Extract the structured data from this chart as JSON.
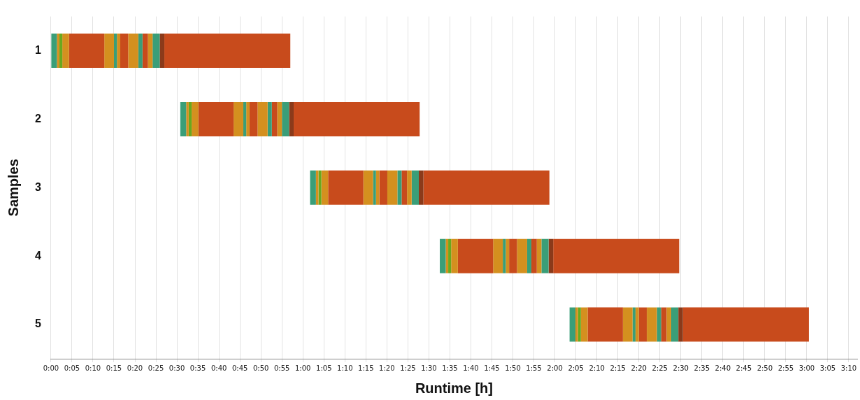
{
  "chart_data": {
    "type": "bar",
    "orientation": "horizontal",
    "xlabel": "Runtime [h]",
    "ylabel": "Samples",
    "categories": [
      "1",
      "2",
      "3",
      "4",
      "5"
    ],
    "grid": "x",
    "legend": false,
    "xlim": [
      0,
      192
    ],
    "xticks": [
      {
        "value": 0,
        "label": "0:00"
      },
      {
        "value": 5,
        "label": "0:05"
      },
      {
        "value": 10,
        "label": "0:10"
      },
      {
        "value": 15,
        "label": "0:15"
      },
      {
        "value": 20,
        "label": "0:20"
      },
      {
        "value": 25,
        "label": "0:25"
      },
      {
        "value": 30,
        "label": "0:30"
      },
      {
        "value": 35,
        "label": "0:35"
      },
      {
        "value": 40,
        "label": "0:40"
      },
      {
        "value": 45,
        "label": "0:45"
      },
      {
        "value": 50,
        "label": "0:50"
      },
      {
        "value": 55,
        "label": "0:55"
      },
      {
        "value": 60,
        "label": "1:00"
      },
      {
        "value": 65,
        "label": "1:05"
      },
      {
        "value": 70,
        "label": "1:10"
      },
      {
        "value": 75,
        "label": "1:15"
      },
      {
        "value": 80,
        "label": "1:20"
      },
      {
        "value": 85,
        "label": "1:25"
      },
      {
        "value": 90,
        "label": "1:30"
      },
      {
        "value": 95,
        "label": "1:35"
      },
      {
        "value": 100,
        "label": "1:40"
      },
      {
        "value": 105,
        "label": "1:45"
      },
      {
        "value": 110,
        "label": "1:50"
      },
      {
        "value": 115,
        "label": "1:55"
      },
      {
        "value": 120,
        "label": "2:00"
      },
      {
        "value": 125,
        "label": "2:05"
      },
      {
        "value": 130,
        "label": "2:10"
      },
      {
        "value": 135,
        "label": "2:15"
      },
      {
        "value": 140,
        "label": "2:20"
      },
      {
        "value": 145,
        "label": "2:25"
      },
      {
        "value": 150,
        "label": "2:30"
      },
      {
        "value": 155,
        "label": "2:35"
      },
      {
        "value": 160,
        "label": "2:40"
      },
      {
        "value": 165,
        "label": "2:45"
      },
      {
        "value": 170,
        "label": "2:50"
      },
      {
        "value": 175,
        "label": "2:55"
      },
      {
        "value": 180,
        "label": "3:00"
      },
      {
        "value": 185,
        "label": "3:05"
      },
      {
        "value": 190,
        "label": "3:10"
      }
    ],
    "series": [
      {
        "color": "#3a9e78",
        "base": [
          0,
          30.8,
          61.7,
          92.6,
          123.5
        ],
        "values": [
          1.4,
          1.4,
          1.4,
          1.4,
          1.4
        ]
      },
      {
        "color": "#d4901f",
        "base": [
          1.4,
          32.2,
          63.1,
          94,
          124.9
        ],
        "values": [
          0.6,
          0.6,
          0.6,
          0.6,
          0.6
        ]
      },
      {
        "color": "#6aa81e",
        "base": [
          2,
          32.8,
          63.7,
          94.6,
          125.5
        ],
        "values": [
          0.7,
          0.7,
          0.7,
          0.7,
          0.7
        ]
      },
      {
        "color": "#d4901f",
        "base": [
          2.7,
          33.5,
          64.4,
          95.3,
          126.2
        ],
        "values": [
          1.6,
          1.6,
          1.6,
          1.6,
          1.6
        ]
      },
      {
        "color": "#c84b1c",
        "base": [
          4.3,
          35.1,
          66,
          96.9,
          127.8
        ],
        "values": [
          8.4,
          8.4,
          8.4,
          8.4,
          8.4
        ]
      },
      {
        "color": "#d4901f",
        "base": [
          12.7,
          43.5,
          74.4,
          105.3,
          136.2
        ],
        "values": [
          2.3,
          2.3,
          2.3,
          2.3,
          2.3
        ]
      },
      {
        "color": "#3a9e78",
        "base": [
          15,
          45.8,
          76.7,
          107.6,
          138.5
        ],
        "values": [
          0.7,
          0.7,
          0.7,
          0.7,
          0.7
        ]
      },
      {
        "color": "#d4901f",
        "base": [
          15.7,
          46.5,
          77.4,
          108.3,
          139.2
        ],
        "values": [
          0.8,
          0.8,
          0.8,
          0.8,
          0.8
        ]
      },
      {
        "color": "#c84b1c",
        "base": [
          16.5,
          47.3,
          78.2,
          109.1,
          140
        ],
        "values": [
          1.9,
          1.9,
          1.9,
          1.9,
          1.9
        ]
      },
      {
        "color": "#d4901f",
        "base": [
          18.4,
          49.2,
          80.1,
          111,
          141.9
        ],
        "values": [
          2.4,
          2.4,
          2.4,
          2.4,
          2.4
        ]
      },
      {
        "color": "#3a9e78",
        "base": [
          20.8,
          51.6,
          82.5,
          113.4,
          144.3
        ],
        "values": [
          1,
          1,
          1,
          1,
          1
        ]
      },
      {
        "color": "#c84b1c",
        "base": [
          21.8,
          52.6,
          83.5,
          114.4,
          145.3
        ],
        "values": [
          1.3,
          1.3,
          1.3,
          1.3,
          1.3
        ]
      },
      {
        "color": "#d4901f",
        "base": [
          23.1,
          53.9,
          84.8,
          115.7,
          146.6
        ],
        "values": [
          1.1,
          1.1,
          1.1,
          1.1,
          1.1
        ]
      },
      {
        "color": "#3a9e78",
        "base": [
          24.2,
          55,
          85.9,
          116.8,
          147.7
        ],
        "values": [
          1.7,
          1.7,
          1.7,
          1.7,
          1.7
        ]
      },
      {
        "color": "#8b3a1a",
        "base": [
          25.9,
          56.7,
          87.6,
          118.5,
          149.4
        ],
        "values": [
          1.1,
          1.1,
          1.1,
          1.1,
          1.1
        ]
      },
      {
        "color": "#c84b1c",
        "base": [
          27,
          57.8,
          88.7,
          119.6,
          150.5
        ],
        "values": [
          30,
          30,
          30,
          30,
          30
        ]
      }
    ]
  }
}
